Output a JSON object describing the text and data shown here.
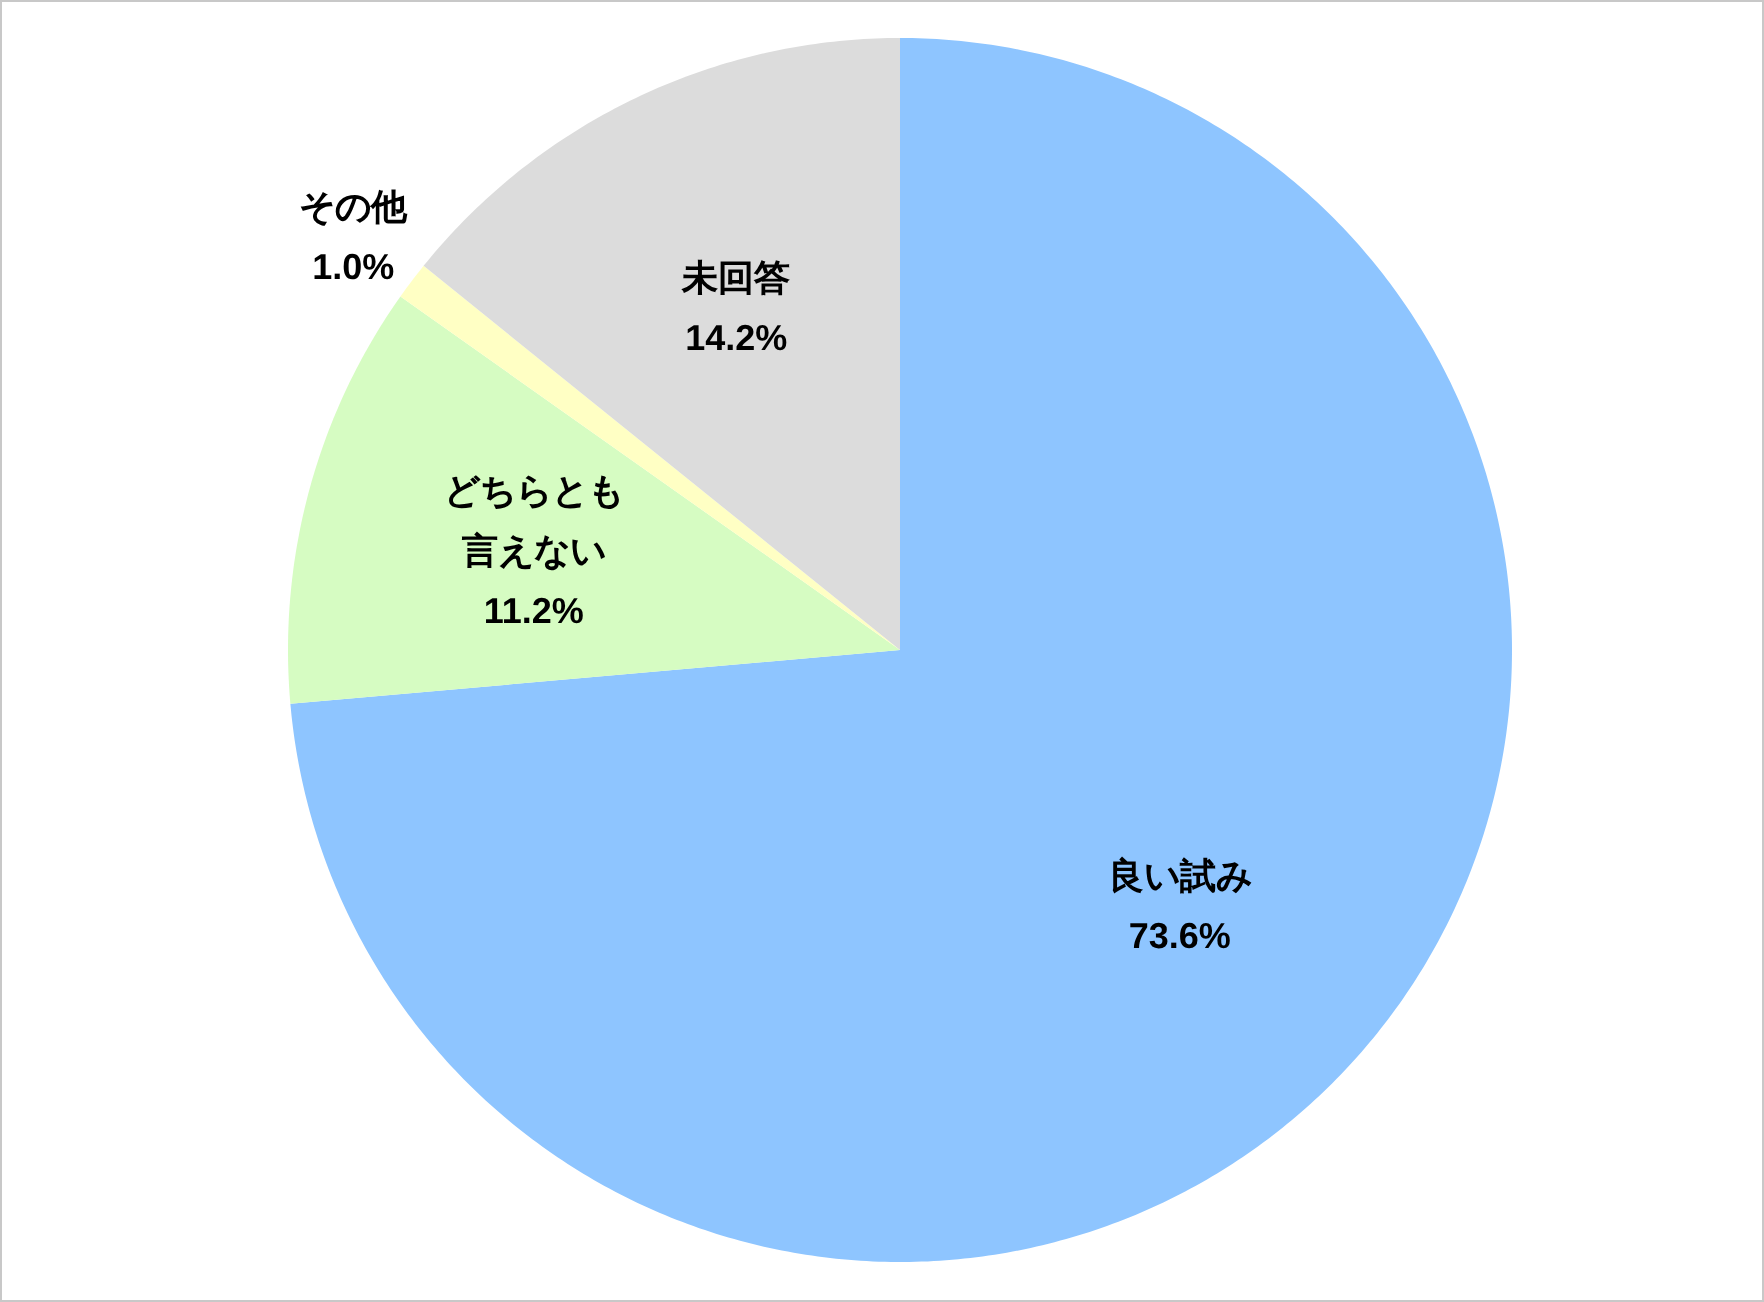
{
  "chart_data": {
    "type": "pie",
    "categories": [
      "良い試み",
      "どちらとも言えない",
      "その他",
      "未回答"
    ],
    "values": [
      73.6,
      11.2,
      1.0,
      14.2
    ],
    "value_labels": [
      "73.6%",
      "11.2%",
      "1.0%",
      "14.2%"
    ],
    "colors": [
      "#8ec5ff",
      "#d6fcc2",
      "#ffffc4",
      "#dcdcdc"
    ]
  }
}
